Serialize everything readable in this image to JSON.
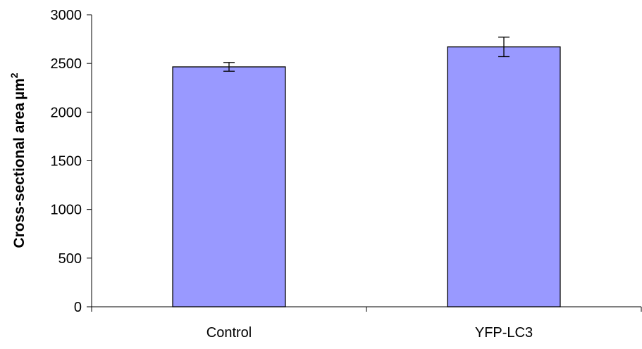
{
  "chart_data": {
    "type": "bar",
    "categories": [
      "Control",
      "YFP-LC3"
    ],
    "values": [
      2465,
      2670
    ],
    "errors": [
      45,
      100
    ],
    "title": "",
    "xlabel": "",
    "ylabel": "Cross-sectional area",
    "ylabel_unit_prefix": "µm",
    "ylabel_unit_exponent": "2",
    "ylim": [
      0,
      3000
    ],
    "yticks": [
      0,
      500,
      1000,
      1500,
      2000,
      2500,
      3000
    ],
    "bar_color": "#9999ff",
    "grid": false,
    "legend": "none"
  }
}
